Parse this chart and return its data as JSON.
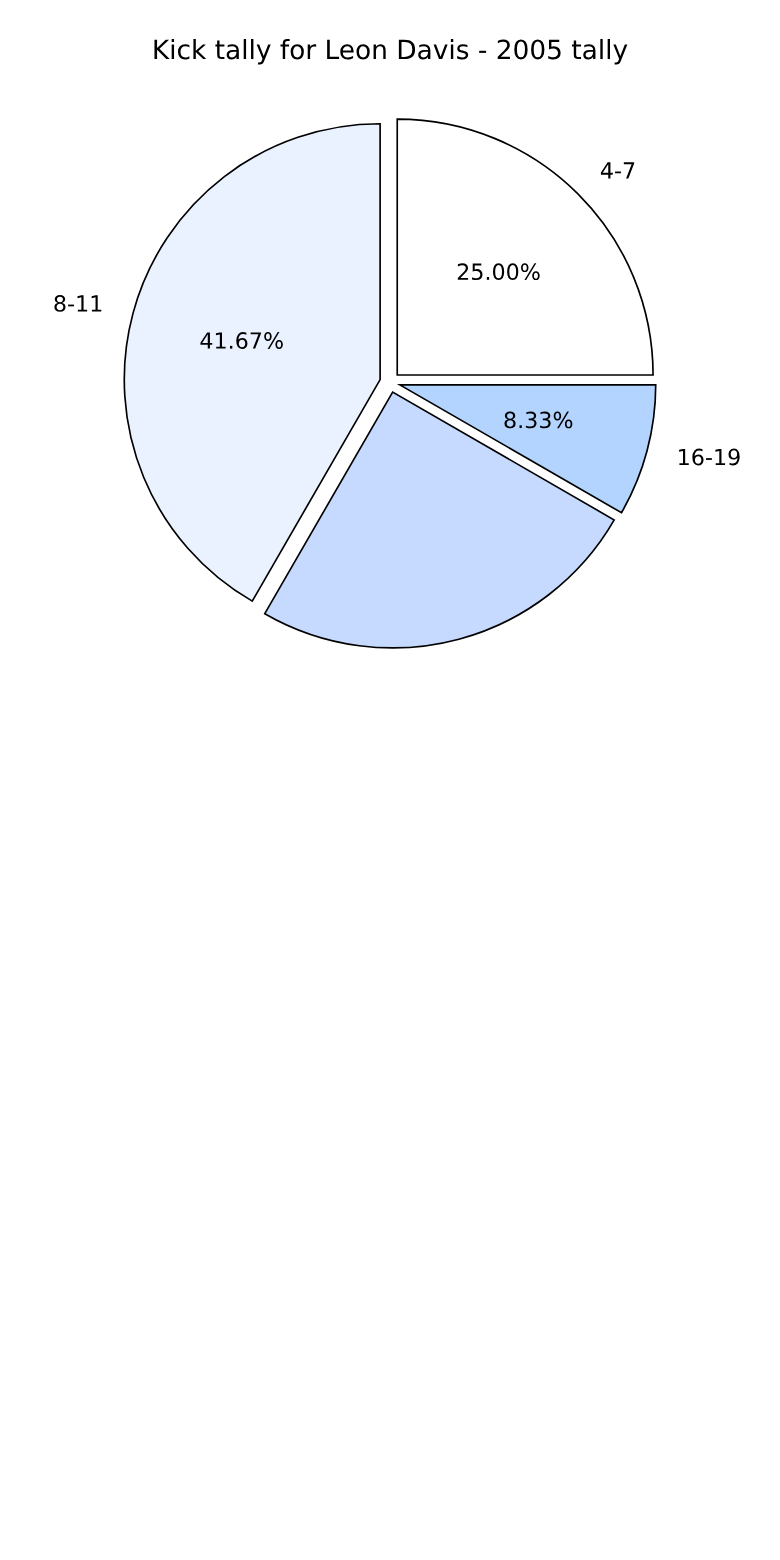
{
  "chart_data": {
    "type": "pie",
    "title": "Kick tally for Leon Davis - 2005 tally",
    "categories": [
      "4-7",
      "16-19",
      null,
      "8-11"
    ],
    "values": [
      25,
      8.33,
      25,
      41.67
    ],
    "value_labels": [
      "25.00%",
      "8.33%",
      null,
      "41.67%"
    ],
    "colors": [
      "#ffffff",
      "#b3d4ff",
      "#c6d9ff",
      "#eaf1ff"
    ]
  }
}
